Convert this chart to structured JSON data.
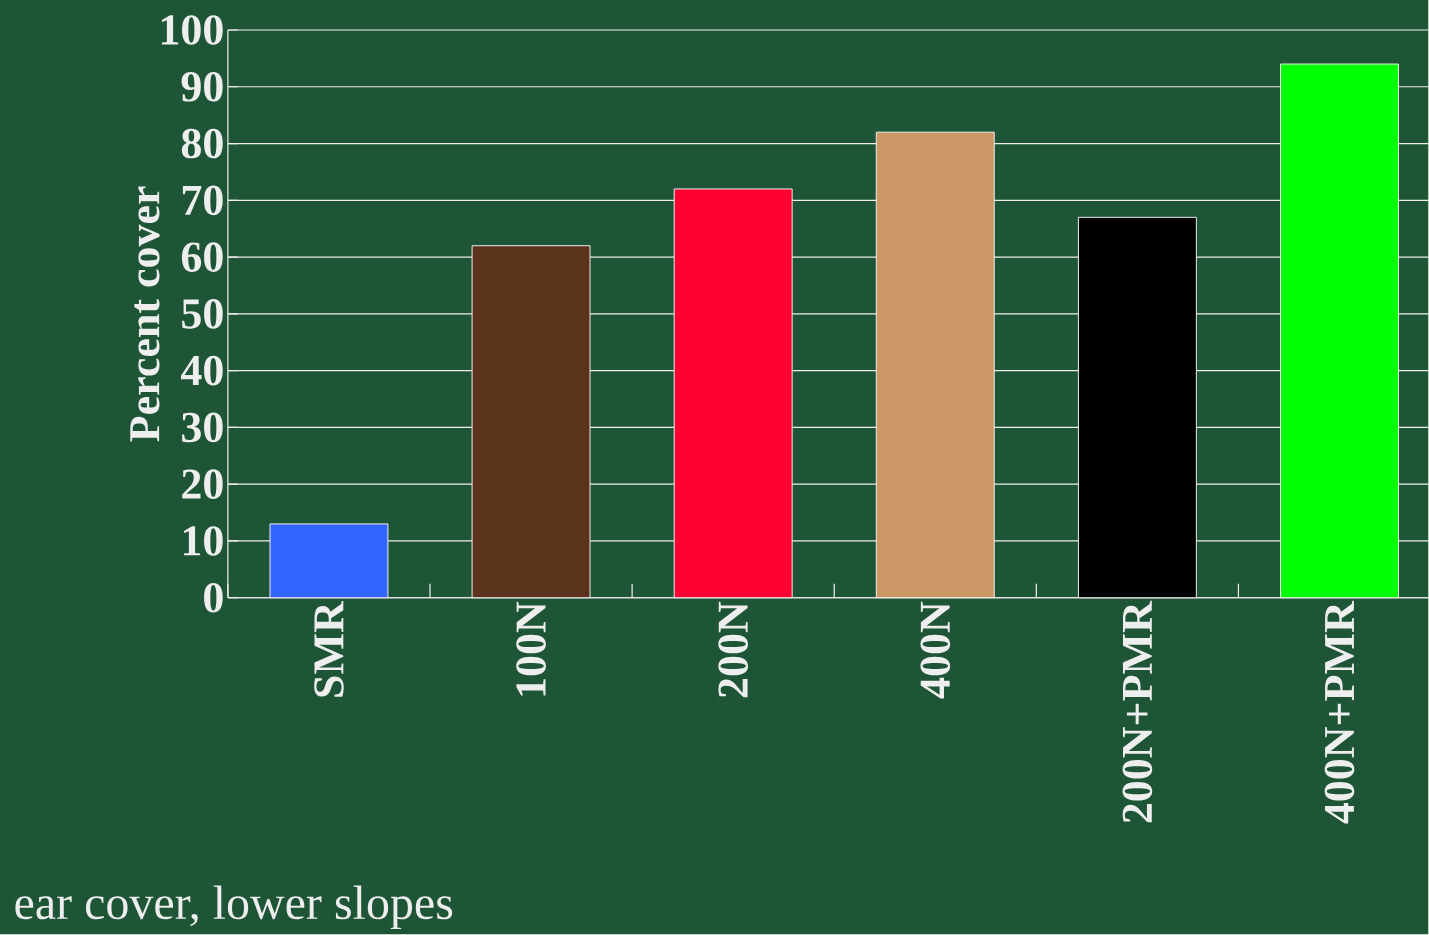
{
  "chart_data": {
    "type": "bar",
    "ylabel": "Percent cover",
    "categories": [
      "SMR",
      "100N",
      "200N",
      "400N",
      "200N+PMR",
      "400N+PMR"
    ],
    "values": [
      13,
      62,
      72,
      82,
      67,
      94
    ],
    "colors": [
      "#3366ff",
      "#5c341e",
      "#ff0033",
      "#cc9966",
      "#000000",
      "#00ff00"
    ],
    "ylim": [
      0,
      100
    ],
    "yticks": [
      0,
      10,
      20,
      30,
      40,
      50,
      60,
      70,
      80,
      90,
      100
    ],
    "grid": "y",
    "annotations": [
      "ear cover, lower slopes"
    ]
  }
}
